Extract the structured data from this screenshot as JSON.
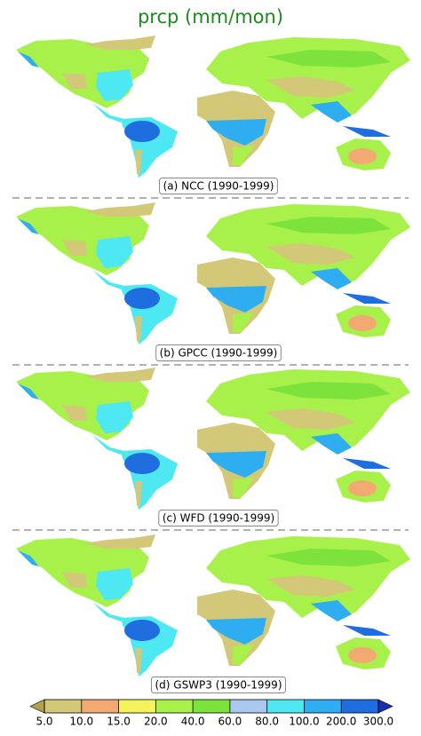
{
  "title": "prcp (mm/mon)",
  "panels": [
    {
      "label": "(a) NCC (1990-1999)"
    },
    {
      "label": "(b) GPCC (1990-1999)"
    },
    {
      "label": "(c) WFD (1990-1999)"
    },
    {
      "label": "(d) GSWP3 (1990-1999)"
    }
  ],
  "colorbar": {
    "ticks": [
      {
        "value": 5,
        "label": "5.0"
      },
      {
        "value": 10,
        "label": "10.0"
      },
      {
        "value": 15,
        "label": "15.0"
      },
      {
        "value": 20,
        "label": "20.0"
      },
      {
        "value": 40,
        "label": "40.0"
      },
      {
        "value": 60,
        "label": "60.0"
      },
      {
        "value": 80,
        "label": "80.0"
      },
      {
        "value": 100,
        "label": "100.0"
      },
      {
        "value": 200,
        "label": "200.0"
      },
      {
        "value": 300,
        "label": "300.0"
      }
    ],
    "colors": [
      "#b4a04a",
      "#d2c878",
      "#f2aa72",
      "#f4f45a",
      "#a8f04a",
      "#7ee23c",
      "#a8c8f0",
      "#4ee8f2",
      "#2eaef0",
      "#1e6ee0",
      "#1a2eb0"
    ]
  }
}
